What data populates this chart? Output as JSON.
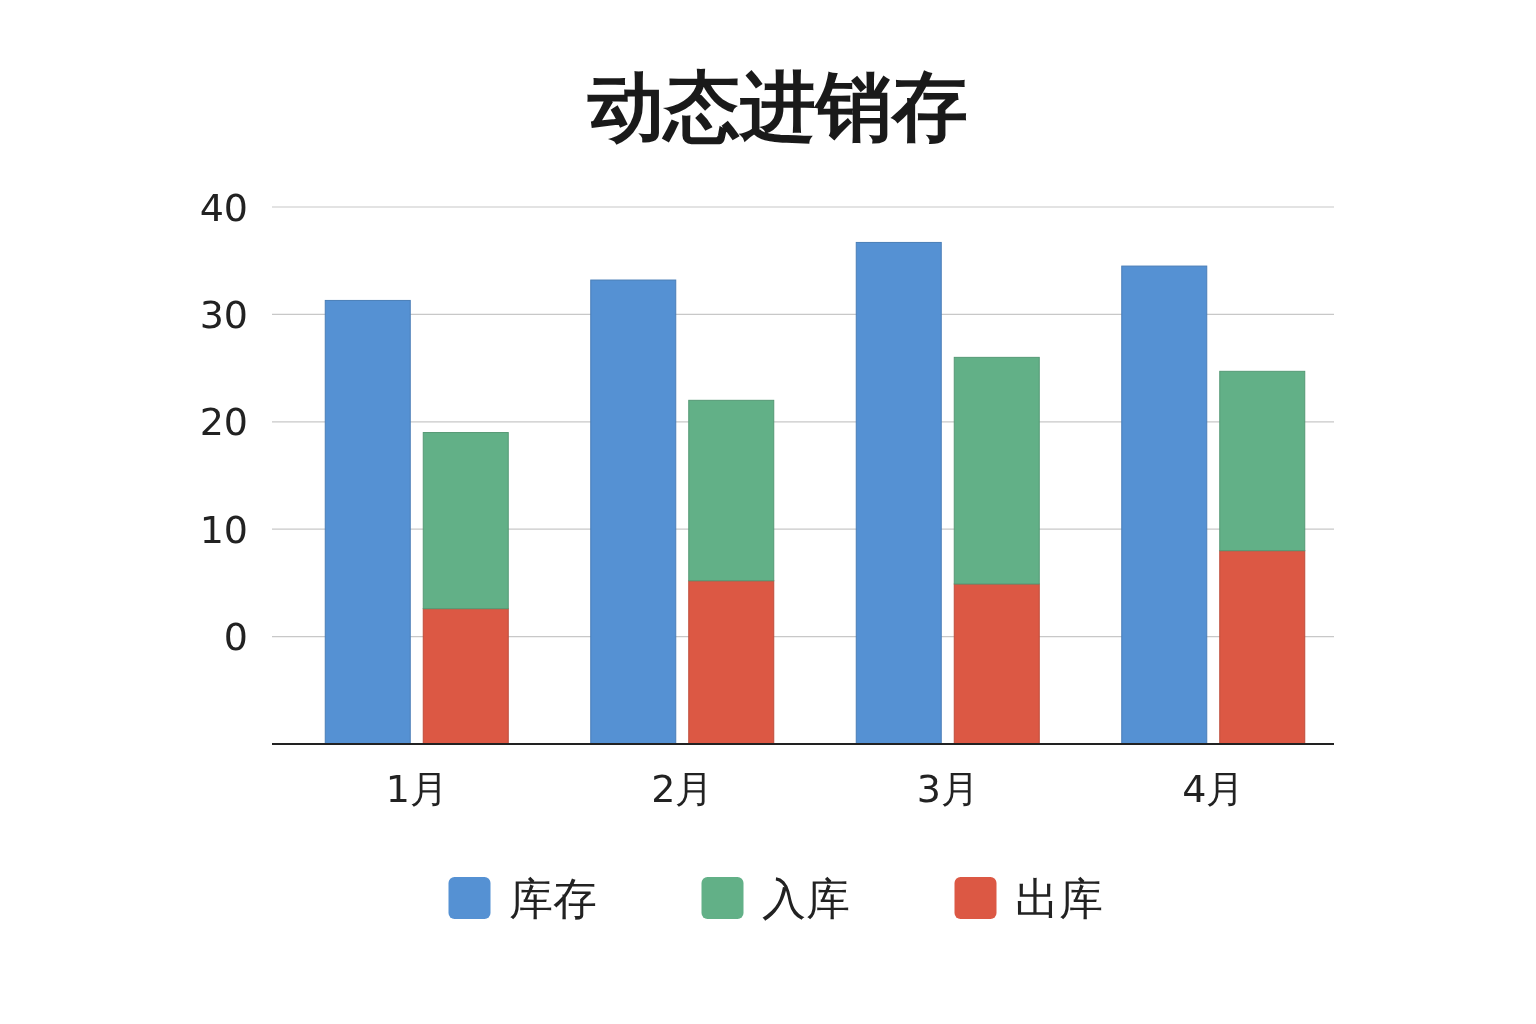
{
  "chart_data": {
    "type": "bar",
    "title": "动态进销存",
    "categories": [
      "1月",
      "2月",
      "3月",
      "4月"
    ],
    "series": [
      {
        "name": "库存",
        "color": "#5591d3",
        "base": [
          -10,
          -10,
          -10,
          -10
        ],
        "values": [
          41.3,
          43.2,
          46.7,
          44.5
        ]
      },
      {
        "name": "出库",
        "color": "#dc5844",
        "base": [
          -10,
          -10,
          -10,
          -10
        ],
        "values": [
          12.6,
          15.2,
          14.9,
          18.0
        ]
      },
      {
        "name": "入库",
        "color": "#62b087",
        "base": [
          2.6,
          5.2,
          4.9,
          8.0
        ],
        "values": [
          16.4,
          16.8,
          21.1,
          16.7
        ]
      }
    ],
    "ylim": [
      -10,
      40
    ],
    "yticks": [
      0,
      10,
      20,
      30,
      40
    ],
    "grid": "y",
    "legend": "bottom"
  }
}
